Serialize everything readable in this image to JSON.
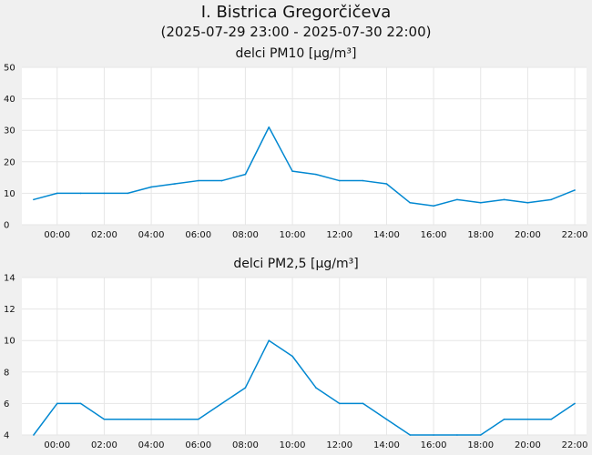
{
  "header": {
    "title": "I. Bistrica Gregorčičeva",
    "subtitle": "(2025-07-29 23:00 - 2025-07-30 22:00)"
  },
  "colors": {
    "line": "#0288d1",
    "grid": "#e6e6e6",
    "plot_bg": "#ffffff",
    "page_bg": "#f0f0f0"
  },
  "chart_data": [
    {
      "type": "line",
      "title": "delci PM10 [µg/m³]",
      "x": [
        "23:00",
        "00:00",
        "01:00",
        "02:00",
        "03:00",
        "04:00",
        "05:00",
        "06:00",
        "07:00",
        "08:00",
        "09:00",
        "10:00",
        "11:00",
        "12:00",
        "13:00",
        "14:00",
        "15:00",
        "16:00",
        "17:00",
        "18:00",
        "19:00",
        "20:00",
        "21:00",
        "22:00"
      ],
      "xticks": [
        "00:00",
        "02:00",
        "04:00",
        "06:00",
        "08:00",
        "10:00",
        "12:00",
        "14:00",
        "16:00",
        "18:00",
        "20:00",
        "22:00"
      ],
      "ylim": [
        0,
        50
      ],
      "yticks": [
        0,
        10,
        20,
        30,
        40,
        50
      ],
      "grid": true,
      "series": [
        {
          "values": [
            8,
            10,
            10,
            10,
            10,
            12,
            13,
            14,
            14,
            16,
            31,
            17,
            16,
            14,
            14,
            13,
            7,
            6,
            8,
            7,
            8,
            7,
            8,
            11
          ]
        }
      ]
    },
    {
      "type": "line",
      "title": "delci PM2,5 [µg/m³]",
      "x": [
        "23:00",
        "00:00",
        "01:00",
        "02:00",
        "03:00",
        "04:00",
        "05:00",
        "06:00",
        "07:00",
        "08:00",
        "09:00",
        "10:00",
        "11:00",
        "12:00",
        "13:00",
        "14:00",
        "15:00",
        "16:00",
        "17:00",
        "18:00",
        "19:00",
        "20:00",
        "21:00",
        "22:00"
      ],
      "xticks": [
        "00:00",
        "02:00",
        "04:00",
        "06:00",
        "08:00",
        "10:00",
        "12:00",
        "14:00",
        "16:00",
        "18:00",
        "20:00",
        "22:00"
      ],
      "ylim": [
        4,
        14
      ],
      "yticks": [
        4,
        6,
        8,
        10,
        12,
        14
      ],
      "grid": true,
      "series": [
        {
          "values": [
            4,
            6,
            6,
            5,
            5,
            5,
            5,
            5,
            6,
            7,
            10,
            9,
            7,
            6,
            6,
            5,
            4,
            4,
            4,
            4,
            5,
            5,
            5,
            6
          ]
        }
      ]
    }
  ]
}
